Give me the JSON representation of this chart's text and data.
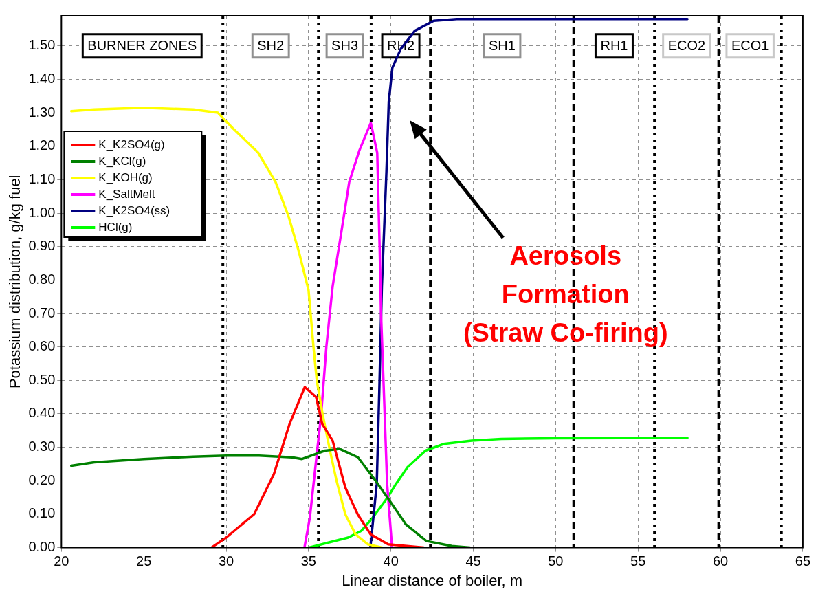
{
  "chart_data": {
    "type": "line",
    "xlabel": "Linear distance of boiler, m",
    "ylabel": "Potassium distribution, g/kg fuel",
    "xlim": [
      20,
      65
    ],
    "xticks": [
      20,
      25,
      30,
      35,
      40,
      45,
      50,
      55,
      60,
      65
    ],
    "ylim": [
      0,
      1.59
    ],
    "yticks": [
      {
        "value": 0,
        "label": "0.00"
      },
      {
        "value": 0.1,
        "label": "0.10"
      },
      {
        "value": 0.2,
        "label": "0.20"
      },
      {
        "value": 0.3,
        "label": "0.30"
      },
      {
        "value": 0.4,
        "label": "0.40"
      },
      {
        "value": 0.5,
        "label": "0.50"
      },
      {
        "value": 0.6,
        "label": "0.60"
      },
      {
        "value": 0.7,
        "label": "0.70"
      },
      {
        "value": 0.8,
        "label": "0.80"
      },
      {
        "value": 0.9,
        "label": "0.90"
      },
      {
        "value": 1,
        "label": "1.00"
      },
      {
        "value": 1.1,
        "label": "1.10"
      },
      {
        "value": 1.2,
        "label": "1.20"
      },
      {
        "value": 1.3,
        "label": "1.30"
      },
      {
        "value": 1.4,
        "label": "1.40"
      },
      {
        "value": 1.5,
        "label": "1.50"
      }
    ],
    "grid": true,
    "legend": "top left",
    "marker": "none",
    "line_style": "solid",
    "series": [
      {
        "name": "K_K2SO4(g)",
        "color": "#ff0000",
        "x": [
          29.1,
          30,
          31.7,
          32.9,
          33.85,
          34.77,
          35.46,
          35.83,
          36.46,
          37.23,
          37.98,
          38.76,
          39.83,
          42
        ],
        "values": [
          0,
          0.03,
          0.1,
          0.22,
          0.37,
          0.48,
          0.45,
          0.37,
          0.32,
          0.18,
          0.1,
          0.04,
          0.01,
          0
        ]
      },
      {
        "name": "K_KCl(g)",
        "color": "#008000",
        "x": [
          20.6,
          22,
          25,
          28,
          30,
          32,
          34,
          34.6,
          36,
          36.9,
          38,
          39.07,
          40,
          40.9,
          42.15,
          43.7,
          44.8
        ],
        "values": [
          0.245,
          0.255,
          0.265,
          0.272,
          0.275,
          0.275,
          0.27,
          0.265,
          0.29,
          0.295,
          0.27,
          0.2,
          0.135,
          0.07,
          0.02,
          0.005,
          0
        ]
      },
      {
        "name": "K_KOH(g)",
        "color": "#ffff00",
        "x": [
          20.6,
          22,
          25,
          28,
          29.5,
          30.4,
          31.94,
          33,
          33.79,
          34.4,
          35,
          35.3,
          35.5,
          35.85,
          36.3,
          36.7,
          37.23,
          37.85,
          38.6,
          39.5
        ],
        "values": [
          1.305,
          1.31,
          1.315,
          1.31,
          1.3,
          1.254,
          1.181,
          1.093,
          0.99,
          0.887,
          0.77,
          0.6,
          0.5,
          0.4,
          0.29,
          0.2,
          0.1,
          0.04,
          0.01,
          0
        ]
      },
      {
        "name": "K_SaltMelt",
        "color": "#ff00ff",
        "x": [
          34.75,
          35.08,
          35.77,
          36.08,
          36.46,
          37,
          37.47,
          38.09,
          38.78,
          39.17,
          39.32,
          39.4,
          39.62,
          39.77,
          40.07
        ],
        "values": [
          0,
          0.09,
          0.4,
          0.6,
          0.78,
          0.946,
          1.093,
          1.188,
          1.27,
          1.18,
          0.887,
          0.7,
          0.4,
          0.19,
          0
        ]
      },
      {
        "name": "K_K2SO4(ss)",
        "color": "#000080",
        "x": [
          38.75,
          39.14,
          39.29,
          39.45,
          39.73,
          39.87,
          40.09,
          40.59,
          41.45,
          42.6,
          44,
          50,
          58
        ],
        "values": [
          0,
          0.19,
          0.46,
          0.78,
          1.127,
          1.333,
          1.435,
          1.49,
          1.545,
          1.575,
          1.58,
          1.58,
          1.58
        ]
      },
      {
        "name": "HCl(g)",
        "color": "#00ff00",
        "x": [
          35,
          36.2,
          37.4,
          38.2,
          38.9,
          39.8,
          40.3,
          41,
          42.1,
          43.2,
          44.9,
          46.7,
          50,
          58
        ],
        "values": [
          0,
          0.015,
          0.03,
          0.05,
          0.09,
          0.15,
          0.19,
          0.24,
          0.29,
          0.31,
          0.32,
          0.325,
          0.327,
          0.328
        ]
      }
    ],
    "ref_lines": [
      {
        "axis": "x",
        "value": 29.8,
        "line_style": "dotted"
      },
      {
        "axis": "x",
        "value": 35.6,
        "line_style": "dotted"
      },
      {
        "axis": "x",
        "value": 38.8,
        "line_style": "dotted"
      },
      {
        "axis": "x",
        "value": 42.4,
        "line_style": "dashed"
      },
      {
        "axis": "x",
        "value": 51.1,
        "line_style": "dashed"
      },
      {
        "axis": "x",
        "value": 56,
        "line_style": "dotted"
      },
      {
        "axis": "x",
        "value": 59.9,
        "line_style": "dashed"
      },
      {
        "axis": "x",
        "value": 63.7,
        "line_style": "dotted"
      }
    ],
    "annotations": [
      "BURNER ZONES",
      "SH2",
      "SH3",
      "RH2",
      "SH1",
      "RH1",
      "ECO2",
      "ECO1",
      "Aerosols\nFormation\n(Straw Co-firing)"
    ]
  }
}
